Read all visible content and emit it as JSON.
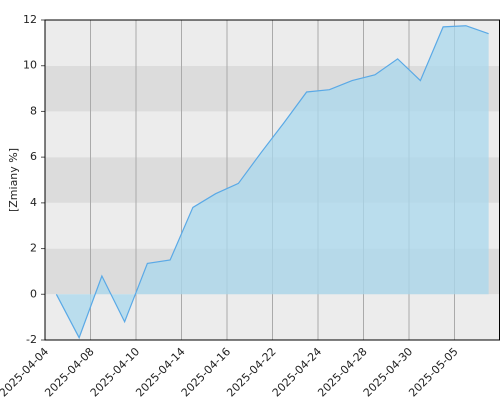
{
  "chart_data": {
    "type": "area",
    "y_label": "[Zmiany %]",
    "x": [
      0,
      1,
      2,
      3,
      4,
      5,
      6,
      7,
      8,
      9,
      10,
      11,
      12,
      13,
      14,
      15,
      16,
      17,
      18,
      19
    ],
    "series": [
      {
        "color": "#5aa9e6",
        "fill": "#a9d8ee",
        "values": [
          0,
          -1.9,
          0.8,
          -1.2,
          1.35,
          1.5,
          3.8,
          4.4,
          4.85,
          6.2,
          7.5,
          8.85,
          8.95,
          9.35,
          9.6,
          10.3,
          9.35,
          11.7,
          11.75,
          11.4
        ]
      }
    ],
    "xlim": [
      -0.5,
      19.5
    ],
    "xticks": [
      {
        "value": -0.5,
        "label": "2025-04-04"
      },
      {
        "value": 1.5,
        "label": "2025-04-08"
      },
      {
        "value": 3.5,
        "label": "2025-04-10"
      },
      {
        "value": 5.5,
        "label": "2025-04-14"
      },
      {
        "value": 7.5,
        "label": "2025-04-16"
      },
      {
        "value": 9.5,
        "label": "2025-04-22"
      },
      {
        "value": 11.5,
        "label": "2025-04-24"
      },
      {
        "value": 13.5,
        "label": "2025-04-28"
      },
      {
        "value": 15.5,
        "label": "2025-04-30"
      },
      {
        "value": 17.5,
        "label": "2025-05-05"
      }
    ],
    "ylim": [
      -2,
      12
    ],
    "yticks": [
      -2,
      0,
      2,
      4,
      6,
      8,
      10,
      12
    ],
    "grid": true,
    "band_colors": [
      "#ececec",
      "#dcdcdc"
    ]
  }
}
